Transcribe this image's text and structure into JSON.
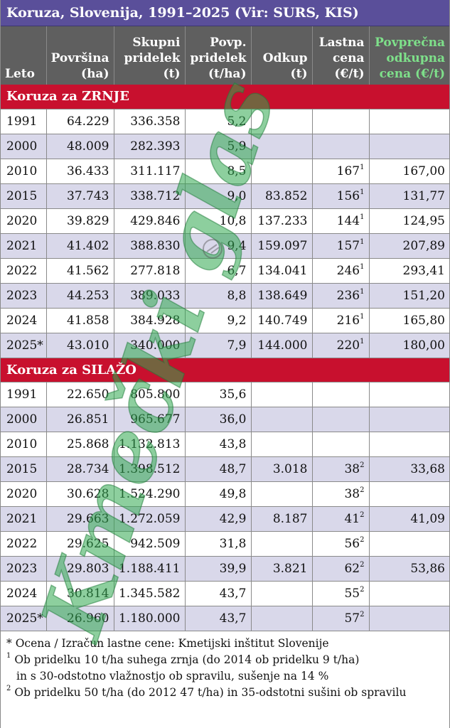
{
  "title": "Koruza, Slovenija, 1991–2025 (Vir: SURS, KIS)",
  "headers": [
    [
      "Leto"
    ],
    [
      "Površina",
      "(ha)"
    ],
    [
      "Skupni",
      "pridelek",
      "(t)"
    ],
    [
      "Povp.",
      "pridelek",
      "(t/ha)"
    ],
    [
      "Odkup",
      "(t)"
    ],
    [
      "Lastna",
      "cena",
      "(€/t)"
    ],
    [
      "Povprečna",
      "odkupna",
      "cena (€/t)"
    ]
  ],
  "sections": [
    {
      "label": "Koruza za ZRNJE",
      "rows": [
        {
          "leto": "1991",
          "povrsina": "64.229",
          "pridelek": "336.358",
          "povp": "5,2",
          "odkup": "",
          "cena": "",
          "sup": "",
          "odkupna": ""
        },
        {
          "leto": "2000",
          "povrsina": "48.009",
          "pridelek": "282.393",
          "povp": "5,9",
          "odkup": "",
          "cena": "",
          "sup": "",
          "odkupna": ""
        },
        {
          "leto": "2010",
          "povrsina": "36.433",
          "pridelek": "311.117",
          "povp": "8,5",
          "odkup": "",
          "cena": "167",
          "sup": "1",
          "odkupna": "167,00"
        },
        {
          "leto": "2015",
          "povrsina": "37.743",
          "pridelek": "338.712",
          "povp": "9,0",
          "odkup": "83.852",
          "cena": "156",
          "sup": "1",
          "odkupna": "131,77"
        },
        {
          "leto": "2020",
          "povrsina": "39.829",
          "pridelek": "429.846",
          "povp": "10,8",
          "odkup": "137.233",
          "cena": "144",
          "sup": "1",
          "odkupna": "124,95"
        },
        {
          "leto": "2021",
          "povrsina": "41.402",
          "pridelek": "388.830",
          "povp": "9,4",
          "odkup": "159.097",
          "cena": "157",
          "sup": "1",
          "odkupna": "207,89"
        },
        {
          "leto": "2022",
          "povrsina": "41.562",
          "pridelek": "277.818",
          "povp": "6,7",
          "odkup": "134.041",
          "cena": "246",
          "sup": "1",
          "odkupna": "293,41"
        },
        {
          "leto": "2023",
          "povrsina": "44.253",
          "pridelek": "389.033",
          "povp": "8,8",
          "odkup": "138.649",
          "cena": "236",
          "sup": "1",
          "odkupna": "151,20"
        },
        {
          "leto": "2024",
          "povrsina": "41.858",
          "pridelek": "384.928",
          "povp": "9,2",
          "odkup": "140.749",
          "cena": "216",
          "sup": "1",
          "odkupna": "165,80"
        },
        {
          "leto": "2025*",
          "povrsina": "43.010",
          "pridelek": "340.000",
          "povp": "7,9",
          "odkup": "144.000",
          "cena": "220",
          "sup": "1",
          "odkupna": "180,00"
        }
      ]
    },
    {
      "label": "Koruza za SILAŽO",
      "rows": [
        {
          "leto": "1991",
          "povrsina": "22.650",
          "pridelek": "805.800",
          "povp": "35,6",
          "odkup": "",
          "cena": "",
          "sup": "",
          "odkupna": ""
        },
        {
          "leto": "2000",
          "povrsina": "26.851",
          "pridelek": "965.677",
          "povp": "36,0",
          "odkup": "",
          "cena": "",
          "sup": "",
          "odkupna": ""
        },
        {
          "leto": "2010",
          "povrsina": "25.868",
          "pridelek": "1.132.813",
          "povp": "43,8",
          "odkup": "",
          "cena": "",
          "sup": "",
          "odkupna": ""
        },
        {
          "leto": "2015",
          "povrsina": "28.734",
          "pridelek": "1.398.512",
          "povp": "48,7",
          "odkup": "3.018",
          "cena": "38",
          "sup": "2",
          "odkupna": "33,68"
        },
        {
          "leto": "2020",
          "povrsina": "30.628",
          "pridelek": "1.524.290",
          "povp": "49,8",
          "odkup": "",
          "cena": "38",
          "sup": "2",
          "odkupna": ""
        },
        {
          "leto": "2021",
          "povrsina": "29.663",
          "pridelek": "1.272.059",
          "povp": "42,9",
          "odkup": "8.187",
          "cena": "41",
          "sup": "2",
          "odkupna": "41,09"
        },
        {
          "leto": "2022",
          "povrsina": "29.625",
          "pridelek": "942.509",
          "povp": "31,8",
          "odkup": "",
          "cena": "56",
          "sup": "2",
          "odkupna": ""
        },
        {
          "leto": "2023",
          "povrsina": "29.803",
          "pridelek": "1.188.411",
          "povp": "39,9",
          "odkup": "3.821",
          "cena": "62",
          "sup": "2",
          "odkupna": "53,86"
        },
        {
          "leto": "2024",
          "povrsina": "30.814",
          "pridelek": "1.345.582",
          "povp": "43,7",
          "odkup": "",
          "cena": "55",
          "sup": "2",
          "odkupna": ""
        },
        {
          "leto": "2025*",
          "povrsina": "26.960",
          "pridelek": "1.180.000",
          "povp": "43,7",
          "odkup": "",
          "cena": "57",
          "sup": "2",
          "odkupna": ""
        }
      ]
    }
  ],
  "notes": [
    {
      "mark": "*",
      "text": "Ocena / Izračun lastne cene: Kmetijski inštitut Slovenije",
      "indent": false
    },
    {
      "mark": "1",
      "text": "Ob pridelku 10 t/ha suhega zrnja (do 2014 ob pridelku 9 t/ha)",
      "indent": false
    },
    {
      "mark": "",
      "text": "in s 30-odstotno vlažnostjo ob spravilu, sušenje na 14 %",
      "indent": true
    },
    {
      "mark": "2",
      "text": "Ob pridelku 50 t/ha (do 2012 47 t/ha) in 35-odstotni sušini ob spravilu",
      "indent": false
    }
  ],
  "watermark": "Kmečki glas",
  "colors": {
    "title_bg": "#5a4f9a",
    "header_bg": "#5f5f5f",
    "section_bg": "#c8102e",
    "alt_row": "#d9d8ea",
    "watermark": "#2fa84f"
  }
}
